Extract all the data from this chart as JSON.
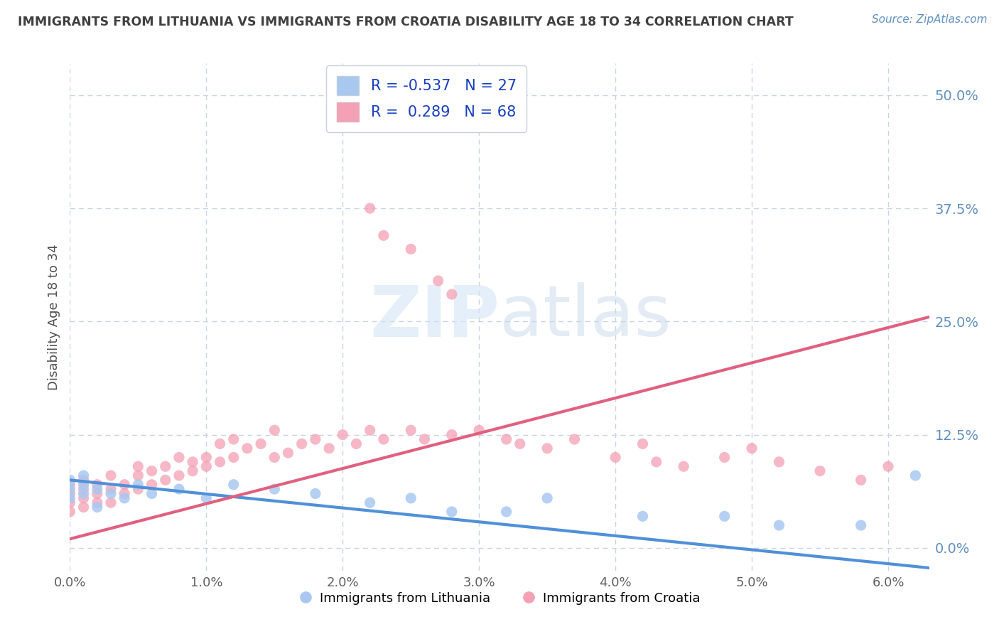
{
  "title": "IMMIGRANTS FROM LITHUANIA VS IMMIGRANTS FROM CROATIA DISABILITY AGE 18 TO 34 CORRELATION CHART",
  "source": "Source: ZipAtlas.com",
  "ylabel": "Disability Age 18 to 34",
  "xlim": [
    0.0,
    0.063
  ],
  "ylim": [
    -0.025,
    0.535
  ],
  "R_lithuania": -0.537,
  "N_lithuania": 27,
  "R_croatia": 0.289,
  "N_croatia": 68,
  "color_lithuania": "#a8c8f0",
  "color_croatia": "#f4a0b5",
  "line_color_lithuania": "#5090d8",
  "line_color_croatia": "#e06080",
  "legend_label_1": "Immigrants from Lithuania",
  "legend_label_2": "Immigrants from Croatia",
  "background_color": "#ffffff",
  "grid_color": "#c8d4e4",
  "title_color": "#404040",
  "source_color": "#6090c0",
  "ytick_vals": [
    0.0,
    0.125,
    0.25,
    0.375,
    0.5
  ],
  "ytick_labels": [
    "0.0%",
    "12.5%",
    "25.0%",
    "37.5%",
    "50.0%"
  ],
  "xtick_vals": [
    0.0,
    0.01,
    0.02,
    0.03,
    0.04,
    0.05,
    0.06
  ],
  "xtick_labels": [
    "0.0%",
    "1.0%",
    "2.0%",
    "3.0%",
    "4.0%",
    "5.0%",
    "6.0%"
  ],
  "lit_line_x0": 0.0,
  "lit_line_y0": 0.075,
  "lit_line_x1": 0.063,
  "lit_line_y1": -0.022,
  "cro_line_x0": 0.0,
  "cro_line_y0": 0.01,
  "cro_line_x1": 0.063,
  "cro_line_y1": 0.255,
  "lit_pts_x": [
    0.0,
    0.0,
    0.0,
    0.001,
    0.001,
    0.001,
    0.002,
    0.002,
    0.003,
    0.004,
    0.005,
    0.006,
    0.008,
    0.01,
    0.012,
    0.015,
    0.018,
    0.022,
    0.025,
    0.028,
    0.032,
    0.035,
    0.042,
    0.048,
    0.052,
    0.058,
    0.062
  ],
  "lit_pts_y": [
    0.065,
    0.075,
    0.055,
    0.07,
    0.06,
    0.08,
    0.065,
    0.045,
    0.06,
    0.055,
    0.07,
    0.06,
    0.065,
    0.055,
    0.07,
    0.065,
    0.06,
    0.05,
    0.055,
    0.04,
    0.04,
    0.055,
    0.035,
    0.035,
    0.025,
    0.025,
    0.08
  ],
  "cro_pts_x": [
    0.0,
    0.0,
    0.0,
    0.0,
    0.001,
    0.001,
    0.001,
    0.001,
    0.002,
    0.002,
    0.002,
    0.003,
    0.003,
    0.003,
    0.004,
    0.004,
    0.005,
    0.005,
    0.005,
    0.006,
    0.006,
    0.007,
    0.007,
    0.008,
    0.008,
    0.009,
    0.009,
    0.01,
    0.01,
    0.011,
    0.011,
    0.012,
    0.012,
    0.013,
    0.014,
    0.015,
    0.015,
    0.016,
    0.017,
    0.018,
    0.019,
    0.02,
    0.021,
    0.022,
    0.023,
    0.025,
    0.026,
    0.028,
    0.03,
    0.032,
    0.033,
    0.035,
    0.037,
    0.04,
    0.042,
    0.045,
    0.048,
    0.05,
    0.052,
    0.055,
    0.058,
    0.06,
    0.022,
    0.023,
    0.025,
    0.027,
    0.028,
    0.043
  ],
  "cro_pts_y": [
    0.05,
    0.06,
    0.04,
    0.07,
    0.055,
    0.065,
    0.045,
    0.075,
    0.06,
    0.05,
    0.07,
    0.065,
    0.08,
    0.05,
    0.07,
    0.06,
    0.08,
    0.065,
    0.09,
    0.07,
    0.085,
    0.075,
    0.09,
    0.08,
    0.1,
    0.085,
    0.095,
    0.09,
    0.1,
    0.095,
    0.115,
    0.1,
    0.12,
    0.11,
    0.115,
    0.1,
    0.13,
    0.105,
    0.115,
    0.12,
    0.11,
    0.125,
    0.115,
    0.13,
    0.12,
    0.13,
    0.12,
    0.125,
    0.13,
    0.12,
    0.115,
    0.11,
    0.12,
    0.1,
    0.115,
    0.09,
    0.1,
    0.11,
    0.095,
    0.085,
    0.075,
    0.09,
    0.375,
    0.345,
    0.33,
    0.295,
    0.28,
    0.095
  ]
}
